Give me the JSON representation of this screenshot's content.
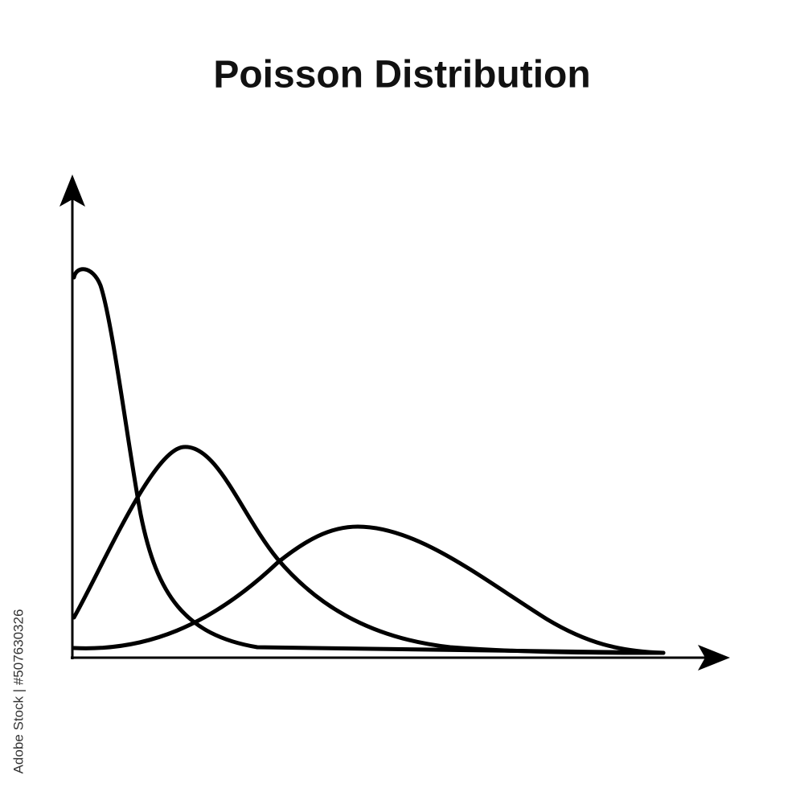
{
  "title": "Poisson Distribution",
  "watermark": "Adobe Stock | #507630326"
}
